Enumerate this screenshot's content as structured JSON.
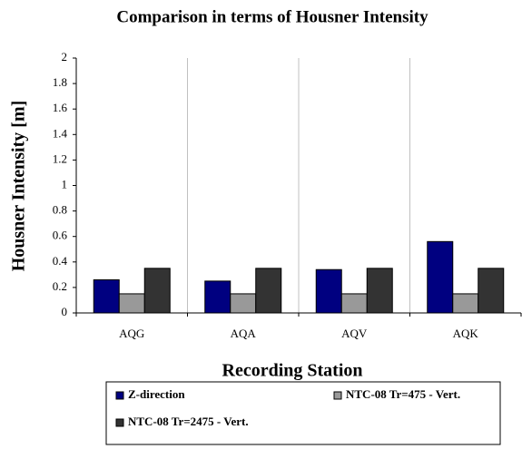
{
  "chart_data": {
    "type": "bar",
    "title": "Comparison in terms of Housner Intensity",
    "x_label": "Recording Station",
    "y_label": "Housner Intensity [m]",
    "categories": [
      "AQG",
      "AQA",
      "AQV",
      "AQK"
    ],
    "series": [
      {
        "name": "Z-direction",
        "color": "#000080",
        "values": [
          0.26,
          0.25,
          0.34,
          0.56
        ]
      },
      {
        "name": "NTC-08 Tr=475 - Vert.",
        "color": "#999999",
        "values": [
          0.15,
          0.15,
          0.15,
          0.15
        ]
      },
      {
        "name": "NTC-08 Tr=2475 - Vert.",
        "color": "#333333",
        "values": [
          0.35,
          0.35,
          0.35,
          0.35
        ]
      }
    ],
    "ylim": [
      0,
      2
    ],
    "yticks": [
      0,
      0.2,
      0.4,
      0.6,
      0.8,
      1,
      1.2,
      1.4,
      1.6,
      1.8,
      2
    ],
    "legend": "bottom"
  }
}
